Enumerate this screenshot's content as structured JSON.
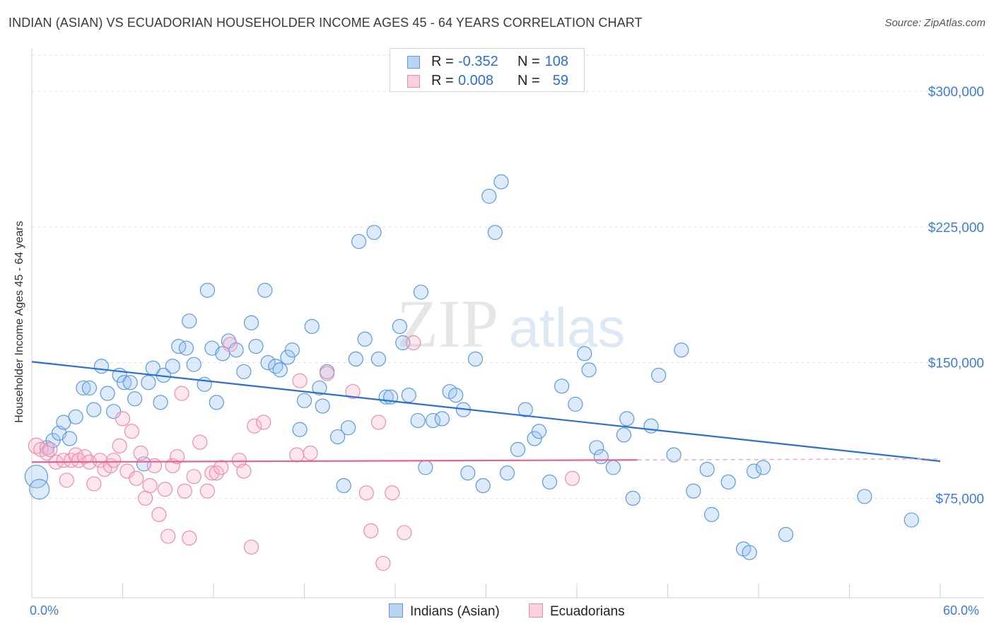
{
  "title": "INDIAN (ASIAN) VS ECUADORIAN HOUSEHOLDER INCOME AGES 45 - 64 YEARS CORRELATION CHART",
  "source": "Source: ZipAtlas.com",
  "watermark": {
    "zip": "ZIP",
    "atlas": "atlas"
  },
  "legend": {
    "rows": [
      {
        "r_label": "R =",
        "r_value": "-0.352",
        "n_label": "N =",
        "n_value": "108"
      },
      {
        "r_label": "R =",
        "r_value": "0.008",
        "n_label": "N =",
        "n_value": "59"
      }
    ]
  },
  "bottom_legend": {
    "series1": "Indians (Asian)",
    "series2": "Ecuadorians"
  },
  "x_tick_labels": {
    "left": "0.0%",
    "right": "60.0%"
  },
  "chart_data": {
    "type": "scatter",
    "title": "INDIAN (ASIAN) VS ECUADORIAN HOUSEHOLDER INCOME AGES 45 - 64 YEARS CORRELATION CHART",
    "xlabel": "",
    "ylabel": "Householder Income Ages 45 - 64 years",
    "xlim": [
      0,
      60
    ],
    "ylim": [
      20000,
      320000
    ],
    "y_ticks": [
      75000,
      150000,
      225000,
      300000
    ],
    "y_tick_labels": [
      "$75,000",
      "$150,000",
      "$225,000",
      "$300,000"
    ],
    "colors": {
      "Indians (Asian)": "#5b9be0",
      "Ecuadorians": "#f08cab"
    },
    "series": [
      {
        "name": "Indians (Asian)",
        "r": -0.352,
        "n": 108,
        "trend": {
          "x": [
            0,
            60
          ],
          "y": [
            150500,
            95500
          ]
        },
        "points": [
          [
            0.3,
            87000
          ],
          [
            0.5,
            80000
          ],
          [
            1.0,
            103000
          ],
          [
            1.4,
            107000
          ],
          [
            1.8,
            111000
          ],
          [
            2.1,
            117000
          ],
          [
            2.5,
            108000
          ],
          [
            2.9,
            120000
          ],
          [
            3.4,
            136000
          ],
          [
            3.8,
            136000
          ],
          [
            4.1,
            124000
          ],
          [
            4.6,
            148000
          ],
          [
            5.0,
            133000
          ],
          [
            5.4,
            123000
          ],
          [
            5.8,
            143000
          ],
          [
            6.1,
            139000
          ],
          [
            6.5,
            139000
          ],
          [
            6.8,
            130000
          ],
          [
            7.4,
            94000
          ],
          [
            7.7,
            139000
          ],
          [
            8.0,
            147000
          ],
          [
            8.5,
            128000
          ],
          [
            8.7,
            143000
          ],
          [
            9.3,
            148000
          ],
          [
            9.7,
            159000
          ],
          [
            10.2,
            158000
          ],
          [
            10.4,
            173000
          ],
          [
            10.7,
            149000
          ],
          [
            11.4,
            138000
          ],
          [
            11.6,
            190000
          ],
          [
            11.9,
            158000
          ],
          [
            12.2,
            128000
          ],
          [
            12.6,
            155000
          ],
          [
            13.0,
            162000
          ],
          [
            13.5,
            157000
          ],
          [
            14.0,
            145000
          ],
          [
            14.5,
            172000
          ],
          [
            14.8,
            159000
          ],
          [
            15.4,
            190000
          ],
          [
            15.6,
            150000
          ],
          [
            16.1,
            148000
          ],
          [
            16.4,
            146000
          ],
          [
            16.9,
            153000
          ],
          [
            17.2,
            157000
          ],
          [
            17.7,
            113000
          ],
          [
            18.0,
            129000
          ],
          [
            18.5,
            170000
          ],
          [
            19.0,
            136000
          ],
          [
            19.2,
            126000
          ],
          [
            19.5,
            145000
          ],
          [
            20.2,
            109000
          ],
          [
            20.6,
            82000
          ],
          [
            20.9,
            114000
          ],
          [
            21.4,
            152000
          ],
          [
            21.6,
            217000
          ],
          [
            22.0,
            163000
          ],
          [
            22.6,
            222000
          ],
          [
            22.9,
            152000
          ],
          [
            23.4,
            131000
          ],
          [
            23.7,
            131000
          ],
          [
            24.3,
            170000
          ],
          [
            24.5,
            161000
          ],
          [
            24.9,
            132000
          ],
          [
            25.5,
            118000
          ],
          [
            25.7,
            189000
          ],
          [
            26.0,
            92000
          ],
          [
            26.5,
            118000
          ],
          [
            27.1,
            119000
          ],
          [
            27.6,
            134000
          ],
          [
            28.0,
            132000
          ],
          [
            28.5,
            124000
          ],
          [
            28.8,
            89000
          ],
          [
            29.3,
            152000
          ],
          [
            29.8,
            82000
          ],
          [
            30.2,
            242000
          ],
          [
            30.6,
            222000
          ],
          [
            31.0,
            250000
          ],
          [
            31.4,
            89000
          ],
          [
            32.1,
            102000
          ],
          [
            32.6,
            124000
          ],
          [
            33.2,
            108000
          ],
          [
            33.5,
            112000
          ],
          [
            34.2,
            84000
          ],
          [
            35.0,
            137000
          ],
          [
            35.9,
            127000
          ],
          [
            36.5,
            155000
          ],
          [
            36.8,
            146000
          ],
          [
            37.3,
            103000
          ],
          [
            37.6,
            98000
          ],
          [
            38.4,
            92000
          ],
          [
            39.1,
            110000
          ],
          [
            39.3,
            119000
          ],
          [
            39.7,
            75000
          ],
          [
            40.9,
            115000
          ],
          [
            41.4,
            143000
          ],
          [
            42.4,
            99000
          ],
          [
            42.9,
            157000
          ],
          [
            43.7,
            79000
          ],
          [
            44.6,
            91000
          ],
          [
            44.9,
            66000
          ],
          [
            46.0,
            84000
          ],
          [
            47.0,
            47000
          ],
          [
            47.4,
            45000
          ],
          [
            47.7,
            90000
          ],
          [
            48.3,
            92000
          ],
          [
            49.8,
            55000
          ],
          [
            55.0,
            76000
          ],
          [
            58.1,
            63000
          ]
        ]
      },
      {
        "name": "Ecuadorians",
        "r": 0.008,
        "n": 59,
        "trend": {
          "x": [
            0,
            40
          ],
          "y": [
            95000,
            96200
          ]
        },
        "points": [
          [
            0.3,
            104000
          ],
          [
            0.6,
            102000
          ],
          [
            1.0,
            100000
          ],
          [
            1.2,
            102000
          ],
          [
            1.6,
            95000
          ],
          [
            2.1,
            96000
          ],
          [
            2.3,
            85000
          ],
          [
            2.6,
            96000
          ],
          [
            2.9,
            99000
          ],
          [
            3.1,
            96000
          ],
          [
            3.5,
            98000
          ],
          [
            3.8,
            95000
          ],
          [
            4.1,
            83000
          ],
          [
            4.5,
            96000
          ],
          [
            4.8,
            91000
          ],
          [
            5.2,
            93000
          ],
          [
            5.4,
            96000
          ],
          [
            5.8,
            104000
          ],
          [
            6.0,
            119000
          ],
          [
            6.3,
            90000
          ],
          [
            6.6,
            112000
          ],
          [
            6.9,
            86000
          ],
          [
            7.2,
            100000
          ],
          [
            7.5,
            75000
          ],
          [
            7.8,
            82000
          ],
          [
            8.1,
            93000
          ],
          [
            8.4,
            66000
          ],
          [
            8.8,
            80000
          ],
          [
            9.0,
            54000
          ],
          [
            9.3,
            93000
          ],
          [
            9.6,
            98000
          ],
          [
            9.9,
            133000
          ],
          [
            10.1,
            79000
          ],
          [
            10.4,
            53000
          ],
          [
            10.7,
            87000
          ],
          [
            11.1,
            106000
          ],
          [
            11.6,
            79000
          ],
          [
            11.9,
            89000
          ],
          [
            12.2,
            89000
          ],
          [
            12.5,
            92000
          ],
          [
            13.1,
            160000
          ],
          [
            13.7,
            96000
          ],
          [
            14.0,
            90000
          ],
          [
            14.5,
            48000
          ],
          [
            14.7,
            115000
          ],
          [
            15.3,
            117000
          ],
          [
            17.5,
            99000
          ],
          [
            17.7,
            140000
          ],
          [
            18.4,
            100000
          ],
          [
            19.5,
            144000
          ],
          [
            21.2,
            134000
          ],
          [
            22.1,
            78000
          ],
          [
            22.4,
            57000
          ],
          [
            22.9,
            117000
          ],
          [
            23.2,
            39000
          ],
          [
            23.8,
            78000
          ],
          [
            24.6,
            56000
          ],
          [
            25.2,
            161000
          ],
          [
            35.7,
            86000
          ]
        ]
      }
    ]
  }
}
